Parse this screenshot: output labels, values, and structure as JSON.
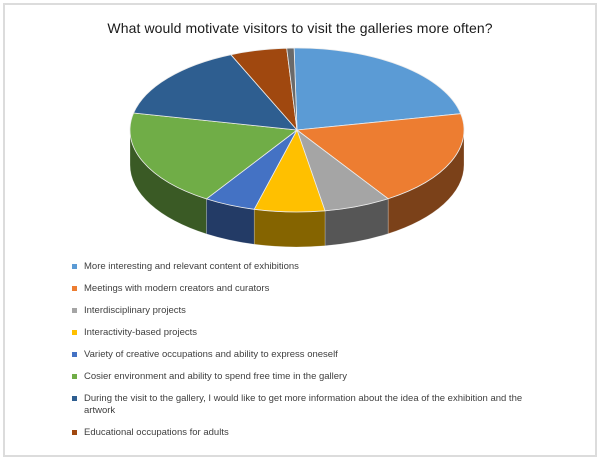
{
  "chart": {
    "title": "What would motivate visitors to visit the galleries more often?"
  },
  "chart_data": {
    "type": "pie",
    "style": "3d",
    "title": "What would motivate visitors to visit the galleries more often?",
    "legend_position": "bottom-left",
    "grid": false,
    "start_angle_deg": -1,
    "values_unit": "percent (estimated from slice angles)",
    "slices": [
      {
        "label": "More interesting and relevant content of exhibitions",
        "value": 22.1,
        "color": "#5B9BD5"
      },
      {
        "label": "Meetings with modern creators and curators",
        "value": 19.0,
        "color": "#ED7D31"
      },
      {
        "label": "Interdisciplinary projects",
        "value": 6.5,
        "color": "#A5A5A5"
      },
      {
        "label": "Interactivity-based projects",
        "value": 6.8,
        "color": "#FFC000"
      },
      {
        "label": "Variety of creative occupations and ability to express oneself",
        "value": 5.0,
        "color": "#4472C4"
      },
      {
        "label": "Cosier environment and ability to spend free time in the gallery",
        "value": 19.2,
        "color": "#70AD47"
      },
      {
        "label": "During the visit to the gallery, I would like to get more information about the idea of the exhibition and the artwork",
        "value": 15.2,
        "color": "#2E5E90"
      },
      {
        "label": "Educational occupations for adults",
        "value": 5.5,
        "color": "#A0480F"
      },
      {
        "label": "",
        "value": 0.7,
        "color": "#6A6A6A",
        "in_legend": false
      }
    ]
  }
}
